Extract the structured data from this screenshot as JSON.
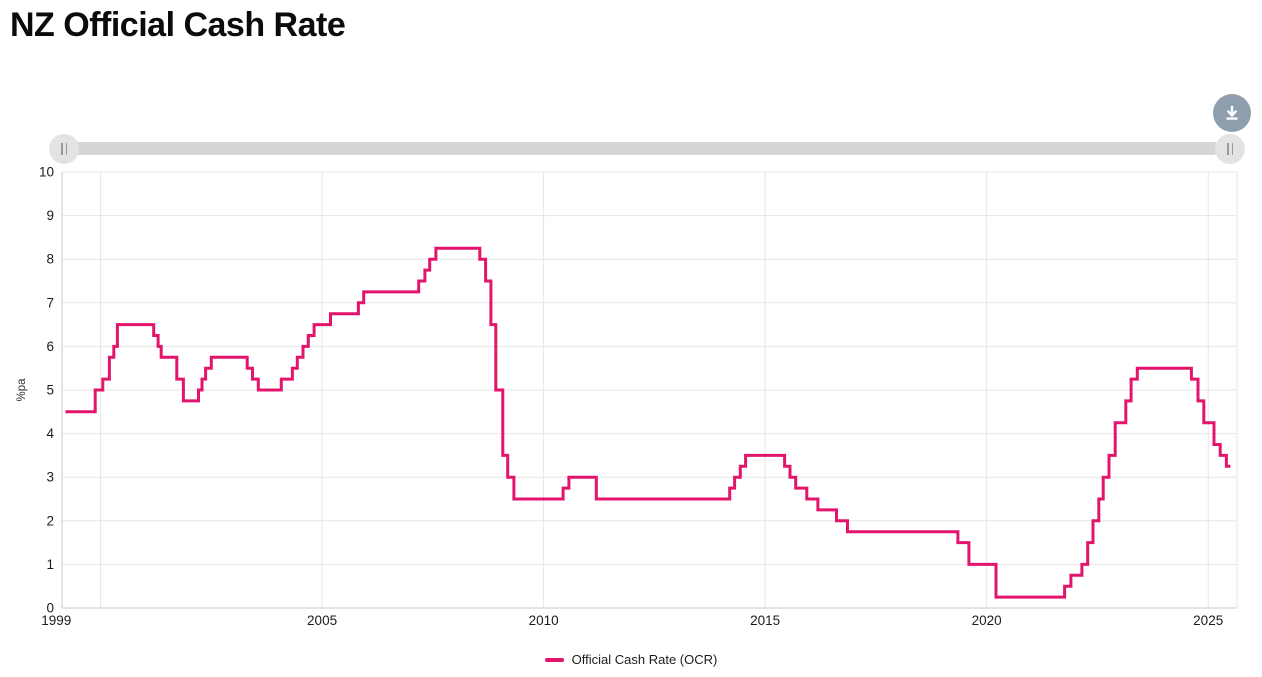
{
  "page": {
    "title": "NZ Official Cash Rate"
  },
  "toolbar": {
    "download_icon": "download"
  },
  "range_slider": {
    "handle_mark": "||"
  },
  "legend": {
    "label": "Official Cash Rate (OCR)"
  },
  "chart_data": {
    "type": "line",
    "step": true,
    "title": "NZ Official Cash Rate",
    "ylabel": "%pa",
    "line_color": "#e3146c",
    "grid_on": true,
    "legend_position": "bottom",
    "x_domain": [
      1999.13,
      2025.65
    ],
    "y_domain": [
      0,
      10
    ],
    "y_ticks": [
      0,
      1,
      2,
      3,
      4,
      5,
      6,
      7,
      8,
      9,
      10
    ],
    "x_ticks": [
      {
        "label": "1999",
        "year": 1999
      },
      {
        "label": "2005",
        "year": 2005
      },
      {
        "label": "2010",
        "year": 2010
      },
      {
        "label": "2015",
        "year": 2015
      },
      {
        "label": "2020",
        "year": 2020
      },
      {
        "label": "2025",
        "year": 2025
      }
    ],
    "grid_years": [
      2000,
      2005,
      2010,
      2015,
      2020,
      2025
    ],
    "series": [
      {
        "name": "Official Cash Rate (OCR)",
        "color": "#e3146c",
        "extend_to": 2025.5,
        "points": [
          [
            1999.21,
            4.5
          ],
          [
            1999.88,
            5.0
          ],
          [
            2000.05,
            5.25
          ],
          [
            2000.2,
            5.75
          ],
          [
            2000.3,
            6.0
          ],
          [
            2000.38,
            6.5
          ],
          [
            2001.2,
            6.25
          ],
          [
            2001.3,
            6.0
          ],
          [
            2001.37,
            5.75
          ],
          [
            2001.72,
            5.25
          ],
          [
            2001.87,
            4.75
          ],
          [
            2002.21,
            5.0
          ],
          [
            2002.29,
            5.25
          ],
          [
            2002.37,
            5.5
          ],
          [
            2002.5,
            5.75
          ],
          [
            2003.31,
            5.5
          ],
          [
            2003.43,
            5.25
          ],
          [
            2003.56,
            5.0
          ],
          [
            2004.08,
            5.25
          ],
          [
            2004.33,
            5.5
          ],
          [
            2004.44,
            5.75
          ],
          [
            2004.57,
            6.0
          ],
          [
            2004.69,
            6.25
          ],
          [
            2004.82,
            6.5
          ],
          [
            2005.19,
            6.75
          ],
          [
            2005.82,
            7.0
          ],
          [
            2005.94,
            7.25
          ],
          [
            2007.18,
            7.5
          ],
          [
            2007.32,
            7.75
          ],
          [
            2007.43,
            8.0
          ],
          [
            2007.57,
            8.25
          ],
          [
            2008.56,
            8.0
          ],
          [
            2008.69,
            7.5
          ],
          [
            2008.81,
            6.5
          ],
          [
            2008.92,
            5.0
          ],
          [
            2009.08,
            3.5
          ],
          [
            2009.19,
            3.0
          ],
          [
            2009.33,
            2.5
          ],
          [
            2010.44,
            2.75
          ],
          [
            2010.57,
            3.0
          ],
          [
            2011.19,
            2.5
          ],
          [
            2014.2,
            2.75
          ],
          [
            2014.31,
            3.0
          ],
          [
            2014.44,
            3.25
          ],
          [
            2014.56,
            3.5
          ],
          [
            2015.44,
            3.25
          ],
          [
            2015.56,
            3.0
          ],
          [
            2015.69,
            2.75
          ],
          [
            2015.94,
            2.5
          ],
          [
            2016.19,
            2.25
          ],
          [
            2016.61,
            2.0
          ],
          [
            2016.86,
            1.75
          ],
          [
            2019.35,
            1.5
          ],
          [
            2019.6,
            1.0
          ],
          [
            2020.21,
            0.25
          ],
          [
            2021.76,
            0.5
          ],
          [
            2021.9,
            0.75
          ],
          [
            2022.15,
            1.0
          ],
          [
            2022.28,
            1.5
          ],
          [
            2022.4,
            2.0
          ],
          [
            2022.53,
            2.5
          ],
          [
            2022.63,
            3.0
          ],
          [
            2022.76,
            3.5
          ],
          [
            2022.9,
            4.25
          ],
          [
            2023.14,
            4.75
          ],
          [
            2023.26,
            5.25
          ],
          [
            2023.4,
            5.5
          ],
          [
            2024.62,
            5.25
          ],
          [
            2024.77,
            4.75
          ],
          [
            2024.9,
            4.25
          ],
          [
            2025.13,
            3.75
          ],
          [
            2025.27,
            3.5
          ],
          [
            2025.41,
            3.25
          ]
        ]
      }
    ]
  }
}
